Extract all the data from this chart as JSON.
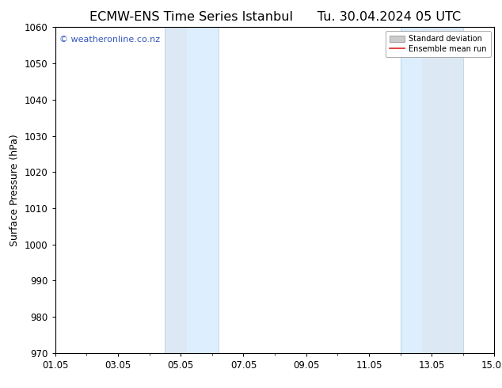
{
  "title": "ECMW-ENS Time Series Istanbul",
  "title2": "Tu. 30.04.2024 05 UTC",
  "ylabel": "Surface Pressure (hPa)",
  "ylim": [
    970,
    1060
  ],
  "yticks": [
    970,
    980,
    990,
    1000,
    1010,
    1020,
    1030,
    1040,
    1050,
    1060
  ],
  "xtick_labels": [
    "01.05",
    "03.05",
    "05.05",
    "07.05",
    "09.05",
    "11.05",
    "13.05",
    "15.05"
  ],
  "xtick_positions_days": [
    0,
    2,
    4,
    6,
    8,
    10,
    12,
    14
  ],
  "shaded_bands": [
    {
      "start_day": 3.5,
      "end_day": 4.2,
      "color": "#dce9f5"
    },
    {
      "start_day": 4.2,
      "end_day": 5.2,
      "color": "#ddeeff"
    },
    {
      "start_day": 11.0,
      "end_day": 11.7,
      "color": "#ddeeff"
    },
    {
      "start_day": 11.7,
      "end_day": 13.0,
      "color": "#dce9f5"
    }
  ],
  "shade_color": "#ddeeff",
  "watermark_text": "© weatheronline.co.nz",
  "watermark_color": "#3355bb",
  "legend_std_color": "#cccccc",
  "legend_mean_color": "#dd2222",
  "bg_color": "#ffffff",
  "axis_bg_color": "#ffffff",
  "title_fontsize": 11.5,
  "tick_fontsize": 8.5,
  "ylabel_fontsize": 9
}
